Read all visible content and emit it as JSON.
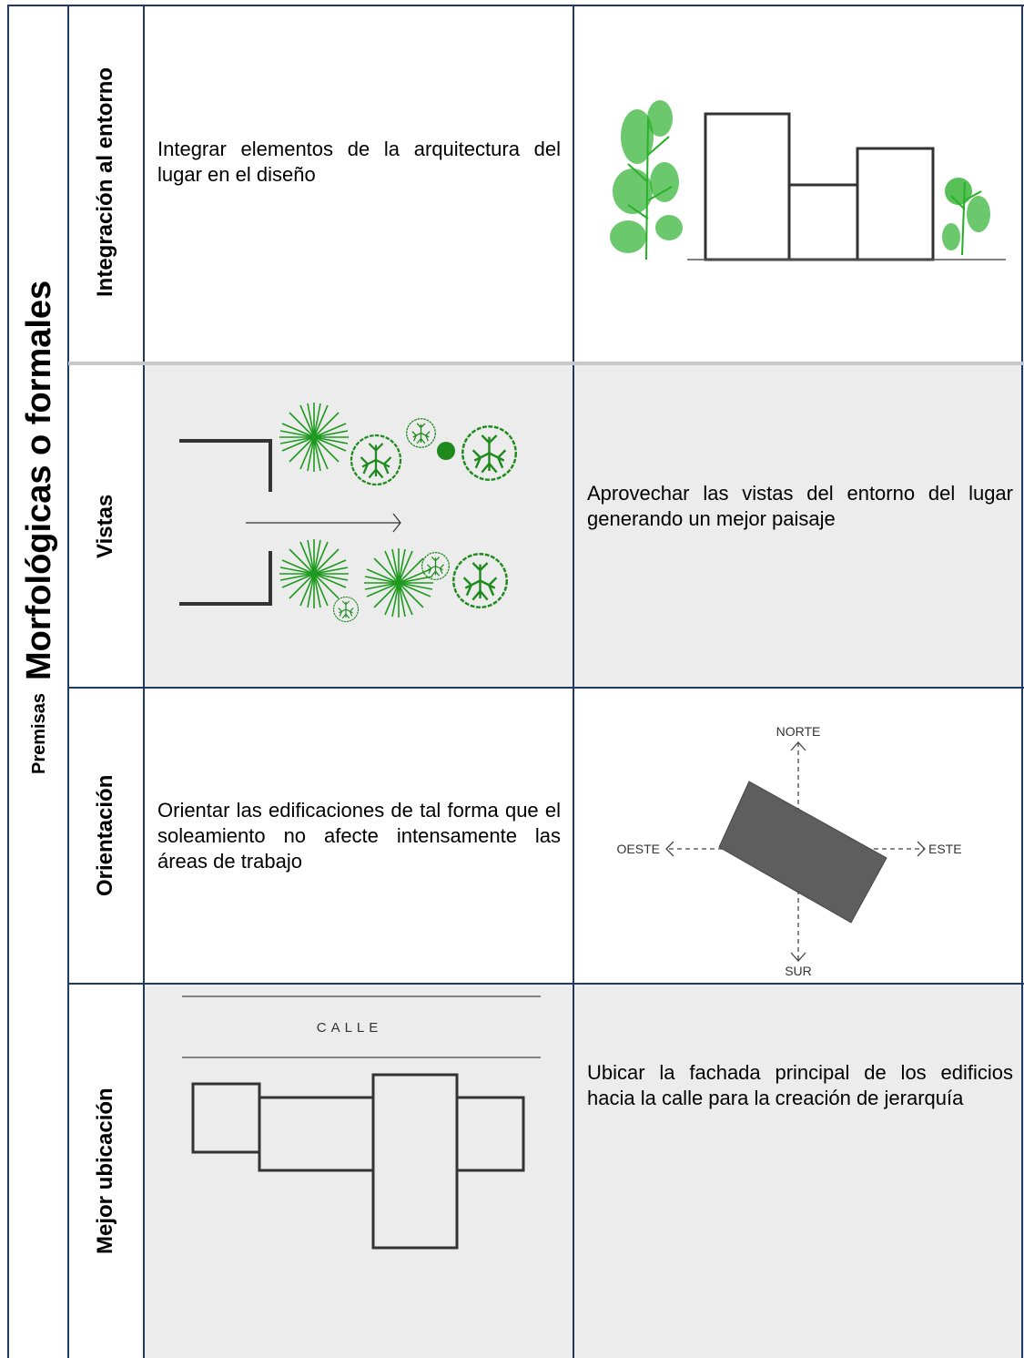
{
  "title": {
    "prefix": "Premisas",
    "main": "Morfológicas o formales"
  },
  "rows": [
    {
      "label": "Integración al entorno",
      "description": "Integrar elementos de la arquitectura del lugar en el diseño"
    },
    {
      "label": "Vistas",
      "description": "Aprovechar las vistas del entorno del lugar generando un mejor paisaje"
    },
    {
      "label": "Orientación",
      "description": "Orientar las edificaciones de tal forma que el soleamiento no afecte intensamente las áreas de trabajo",
      "compass": {
        "north": "NORTE",
        "west": "OESTE",
        "east": "ESTE",
        "south": "SUR"
      }
    },
    {
      "label": "Mejor ubicación",
      "description": "Ubicar la fachada principal de los edificios hacia la calle para la creación de jerarquía",
      "street": "CALLE"
    }
  ]
}
